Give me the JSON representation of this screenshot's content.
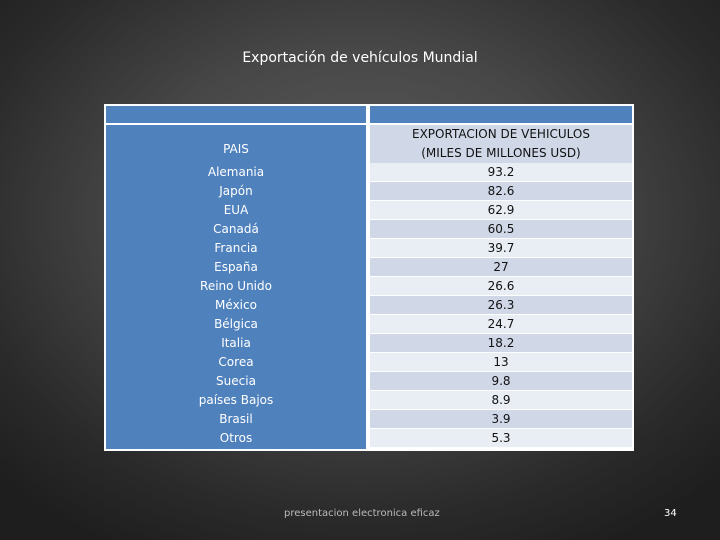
{
  "title": "Exportación de vehículos Mundial",
  "table": {
    "left_header": "PAIS",
    "right_header_line1": "EXPORTACION DE VEHICULOS",
    "right_header_line2": "(MILES DE MILLONES USD)",
    "rows": [
      {
        "pais": "Alemania",
        "valor": "93.2"
      },
      {
        "pais": "Japón",
        "valor": "82.6"
      },
      {
        "pais": "EUA",
        "valor": "62.9"
      },
      {
        "pais": "Canadá",
        "valor": "60.5"
      },
      {
        "pais": "Francia",
        "valor": "39.7"
      },
      {
        "pais": "España",
        "valor": "27"
      },
      {
        "pais": "Reino Unido",
        "valor": "26.6"
      },
      {
        "pais": "México",
        "valor": "26.3"
      },
      {
        "pais": "Bélgica",
        "valor": "24.7"
      },
      {
        "pais": "Italia",
        "valor": "18.2"
      },
      {
        "pais": "Corea",
        "valor": "13"
      },
      {
        "pais": "Suecia",
        "valor": "9.8"
      },
      {
        "pais": "países Bajos",
        "valor": "8.9"
      },
      {
        "pais": "Brasil",
        "valor": "3.9"
      },
      {
        "pais": "Otros",
        "valor": "5.3"
      }
    ]
  },
  "footer": {
    "text": "presentacion electronica eficaz",
    "page_number": "34"
  },
  "colors": {
    "header_blue": "#4f81bd",
    "row_dark": "#d0d8e8",
    "row_light": "#e9edf4"
  }
}
